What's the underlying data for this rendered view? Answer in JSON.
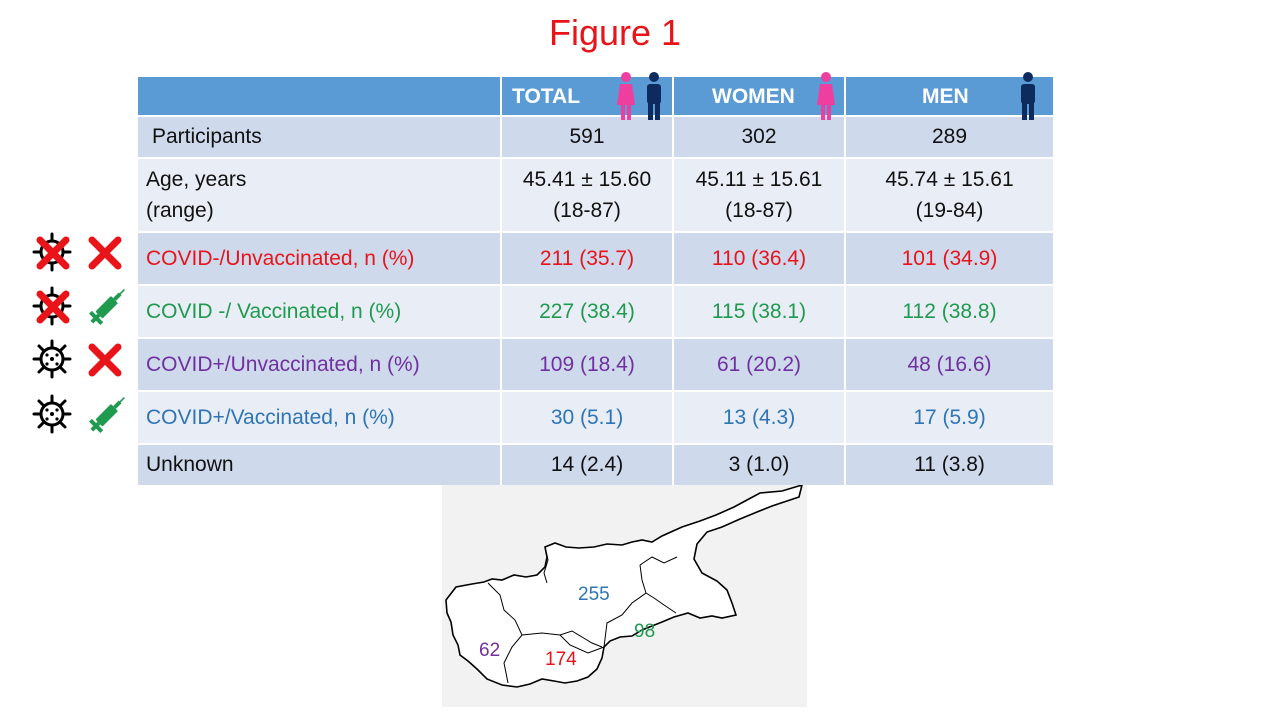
{
  "title": "Figure 1",
  "table": {
    "headers": [
      "",
      "TOTAL",
      "WOMEN",
      "MEN"
    ],
    "rows": [
      {
        "label": "Participants",
        "total": "591",
        "women": "302",
        "men": "289"
      },
      {
        "label_line1": "Age, years",
        "label_line2": "(range)",
        "total_line1": "45.41 ± 15.60",
        "total_line2": "(18-87)",
        "women_line1": "45.11 ± 15.61",
        "women_line2": "(18-87)",
        "men_line1": "45.74 ± 15.61",
        "men_line2": "(19-84)"
      },
      {
        "label": "COVID-/Unvaccinated, n (%)",
        "total": "211 (35.7)",
        "women": "110 (36.4)",
        "men": "101 (34.9)"
      },
      {
        "label": "COVID -/ Vaccinated, n (%)",
        "total": "227 (38.4)",
        "women": "115 (38.1)",
        "men": "112 (38.8)"
      },
      {
        "label": "COVID+/Unvaccinated, n (%)",
        "total": "109 (18.4)",
        "women": "61 (20.2)",
        "men": "48 (16.6)"
      },
      {
        "label": "COVID+/Vaccinated, n (%)",
        "total": "30 (5.1)",
        "women": "13 (4.3)",
        "men": "17 (5.9)"
      },
      {
        "label": "Unknown",
        "total": "14 (2.4)",
        "women": "3 (1.0)",
        "men": "11  (3.8)"
      }
    ]
  },
  "map": {
    "labels": [
      "255",
      "98",
      "62",
      "174"
    ]
  },
  "colors": {
    "title": "#e8141a",
    "header_bg": "#5b9bd5",
    "row_dark": "#cfd9ec",
    "row_light": "#e9edf6",
    "negative_unvaccinated": "#e8141a",
    "negative_vaccinated": "#1f9a4f",
    "positive_unvaccinated": "#7030a0",
    "positive_vaccinated": "#2e75b6",
    "women_icon": "#ee3ea0",
    "men_icon": "#0d2b5e"
  },
  "icons": [
    "virus-icon",
    "cross-icon",
    "syringe-icon",
    "woman-icon",
    "man-icon"
  ]
}
